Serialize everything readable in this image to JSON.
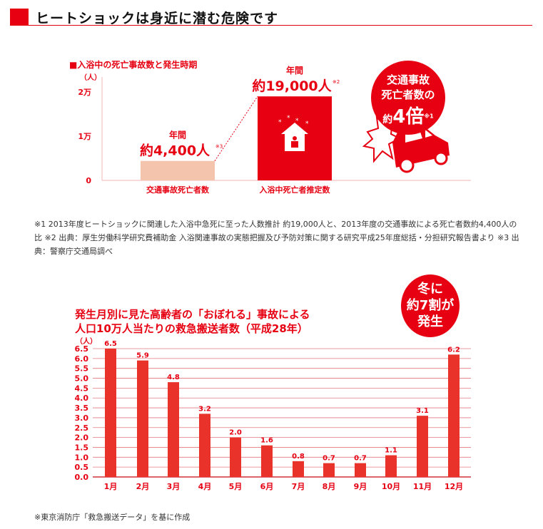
{
  "header": {
    "title": "ヒートショックは身近に潜む危険です"
  },
  "chart_data": [
    {
      "type": "bar",
      "title": "■入浴中の死亡事故数と発生時期",
      "ylabel": "（人）",
      "yticks": [
        "0",
        "1万",
        "2万"
      ],
      "ylim": [
        0,
        20000
      ],
      "categories": [
        "交通事故死亡者数",
        "入浴中死亡者推定数"
      ],
      "values": [
        4400,
        19000
      ],
      "colors": [
        "#f5c4ad",
        "#e60012"
      ],
      "labels": [
        {
          "top": "年間",
          "main": "約4,400人",
          "note": "※3"
        },
        {
          "top": "年間",
          "main": "約19,000人",
          "note": "※2"
        }
      ],
      "callout": {
        "line1": "交通事故",
        "line2": "死亡者数の",
        "prefix": "約",
        "big": "4倍",
        "note": "※1"
      }
    },
    {
      "type": "bar",
      "title": "発生月別に見た高齢者の「おぼれる」事故による",
      "subtitle": "人口10万人当たりの救急搬送者数（平成28年）",
      "ylabel": "（人）",
      "ylim": [
        0,
        6.5
      ],
      "yticks": [
        "0.0",
        "0.5",
        "1.0",
        "1.5",
        "2.0",
        "2.5",
        "3.0",
        "3.5",
        "4.0",
        "4.5",
        "5.0",
        "5.5",
        "6.0",
        "6.5"
      ],
      "categories": [
        "1月",
        "2月",
        "3月",
        "4月",
        "5月",
        "6月",
        "7月",
        "8月",
        "9月",
        "10月",
        "11月",
        "12月"
      ],
      "values": [
        6.5,
        5.9,
        4.8,
        3.2,
        2.0,
        1.6,
        0.8,
        0.7,
        0.7,
        1.1,
        3.1,
        6.2
      ],
      "value_labels": [
        "6.5",
        "5.9",
        "4.8",
        "3.2",
        "2.0",
        "1.6",
        "0.8",
        "0.7",
        "0.7",
        "1.1",
        "3.1",
        "6.2"
      ],
      "grid": true,
      "color": "#e8322a",
      "callout": {
        "line1": "冬に",
        "line2": "約7割が",
        "line3": "発生"
      }
    }
  ],
  "notes": "※1 2013年度ヒートショックに関連した入浴中急死に至った人数推計 約19,000人と、2013年度の交通事故による死亡者数約4,400人の比 ※2 出典：厚生労働科学研究費補助金 入浴関連事故の実態把握及び予防対策に関する研究平成25年度総括・分担研究報告書より ※3 出典：警察庁交通局調べ",
  "source": "※東京消防庁「救急搬送データ」を基に作成"
}
